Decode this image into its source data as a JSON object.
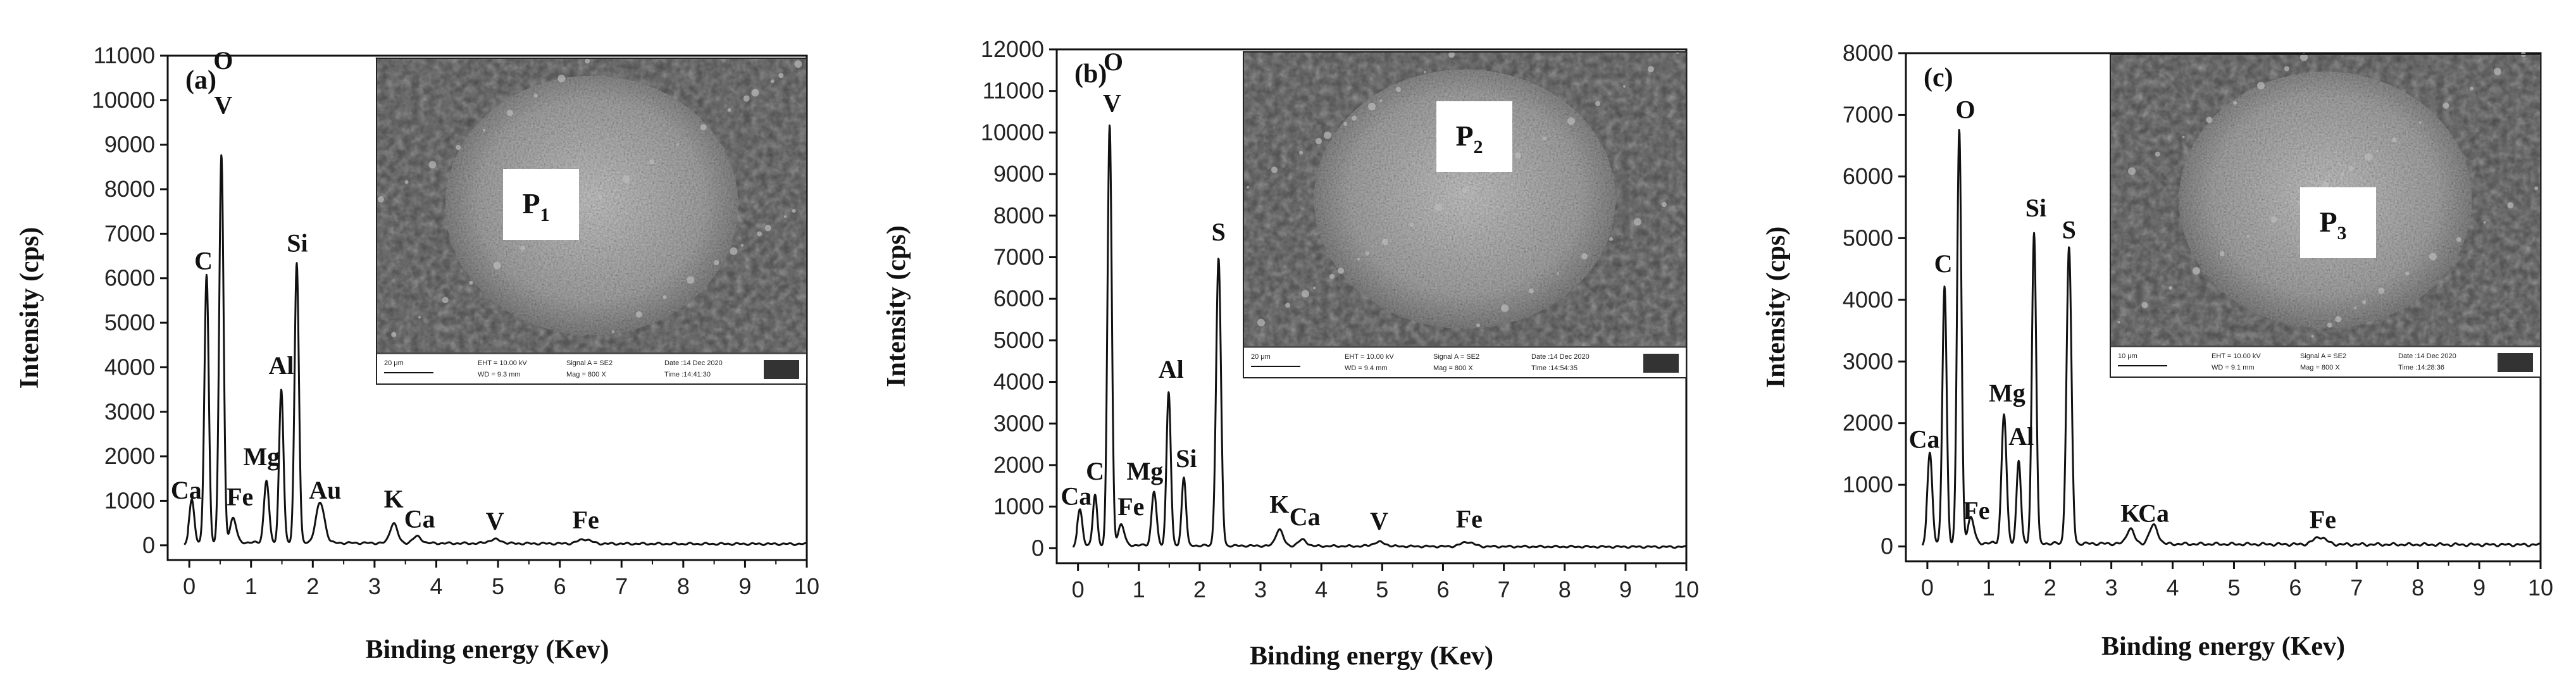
{
  "chart_data": [
    {
      "type": "line",
      "panel": "(a)",
      "xlabel": "Binding energy (Kev)",
      "ylabel": "Intensity (cps)",
      "xlim": [
        0,
        10
      ],
      "ylim": [
        0,
        11000
      ],
      "xticks": [
        0,
        1,
        2,
        3,
        4,
        5,
        6,
        7,
        8,
        9,
        10
      ],
      "yticks": [
        0,
        1000,
        2000,
        3000,
        4000,
        5000,
        6000,
        7000,
        8000,
        9000,
        10000,
        11000
      ],
      "baseline": 50,
      "peaks": [
        {
          "x": 0.04,
          "y": 950,
          "w": 0.04
        },
        {
          "x": 0.28,
          "y": 6000,
          "w": 0.035
        },
        {
          "x": 0.52,
          "y": 8700,
          "w": 0.035
        },
        {
          "x": 0.71,
          "y": 550,
          "w": 0.05
        },
        {
          "x": 1.25,
          "y": 1400,
          "w": 0.04
        },
        {
          "x": 1.49,
          "y": 3450,
          "w": 0.035
        },
        {
          "x": 1.74,
          "y": 6300,
          "w": 0.035
        },
        {
          "x": 2.12,
          "y": 900,
          "w": 0.07
        },
        {
          "x": 3.31,
          "y": 450,
          "w": 0.06
        },
        {
          "x": 3.69,
          "y": 150,
          "w": 0.07
        },
        {
          "x": 4.95,
          "y": 90,
          "w": 0.1
        },
        {
          "x": 6.4,
          "y": 100,
          "w": 0.1
        }
      ],
      "labels": [
        {
          "text": "Ca",
          "x": -0.05,
          "y": 1050
        },
        {
          "text": "C",
          "x": 0.23,
          "y": 6200
        },
        {
          "text": "O",
          "x": 0.55,
          "y": 10700
        },
        {
          "text": "V",
          "x": 0.55,
          "y": 9700
        },
        {
          "text": "Fe",
          "x": 0.82,
          "y": 900
        },
        {
          "text": "Mg",
          "x": 1.17,
          "y": 1800
        },
        {
          "text": "Al",
          "x": 1.49,
          "y": 3850
        },
        {
          "text": "Si",
          "x": 1.75,
          "y": 6600
        },
        {
          "text": "Au",
          "x": 2.2,
          "y": 1050
        },
        {
          "text": "K",
          "x": 3.31,
          "y": 850
        },
        {
          "text": "Ca",
          "x": 3.73,
          "y": 400
        },
        {
          "text": "V",
          "x": 4.95,
          "y": 350
        },
        {
          "text": "Fe",
          "x": 6.42,
          "y": 380
        }
      ],
      "inset": {
        "particle": "P",
        "subscript": "1",
        "scale_bar": "20 μm",
        "eht": "EHT = 10.00 kV",
        "wd": "WD = 9.3 mm",
        "signal": "Signal A = SE2",
        "mag": "Mag = 800 X",
        "date": "Date :14 Dec 2020",
        "time": "Time :14:41:30"
      }
    },
    {
      "type": "line",
      "panel": "(b)",
      "xlabel": "Binding energy (Kev)",
      "ylabel": "Intensity (cps)",
      "xlim": [
        0,
        10
      ],
      "ylim": [
        0,
        12000
      ],
      "xticks": [
        0,
        1,
        2,
        3,
        4,
        5,
        6,
        7,
        8,
        9,
        10
      ],
      "yticks": [
        0,
        1000,
        2000,
        3000,
        4000,
        5000,
        6000,
        7000,
        8000,
        9000,
        10000,
        11000,
        12000
      ],
      "baseline": 60,
      "peaks": [
        {
          "x": 0.03,
          "y": 850,
          "w": 0.04
        },
        {
          "x": 0.28,
          "y": 1200,
          "w": 0.035
        },
        {
          "x": 0.52,
          "y": 10100,
          "w": 0.035
        },
        {
          "x": 0.71,
          "y": 500,
          "w": 0.05
        },
        {
          "x": 1.25,
          "y": 1300,
          "w": 0.04
        },
        {
          "x": 1.49,
          "y": 3700,
          "w": 0.035
        },
        {
          "x": 1.74,
          "y": 1650,
          "w": 0.035
        },
        {
          "x": 2.31,
          "y": 6900,
          "w": 0.04
        },
        {
          "x": 3.31,
          "y": 400,
          "w": 0.06
        },
        {
          "x": 3.69,
          "y": 150,
          "w": 0.07
        },
        {
          "x": 4.95,
          "y": 100,
          "w": 0.1
        },
        {
          "x": 6.4,
          "y": 110,
          "w": 0.1
        }
      ],
      "labels": [
        {
          "text": "Ca",
          "x": -0.03,
          "y": 1050
        },
        {
          "text": "C",
          "x": 0.28,
          "y": 1650
        },
        {
          "text": "O",
          "x": 0.58,
          "y": 11500
        },
        {
          "text": "V",
          "x": 0.56,
          "y": 10500
        },
        {
          "text": "Fe",
          "x": 0.87,
          "y": 800
        },
        {
          "text": "Mg",
          "x": 1.1,
          "y": 1650
        },
        {
          "text": "Al",
          "x": 1.53,
          "y": 4100
        },
        {
          "text": "Si",
          "x": 1.78,
          "y": 1950
        },
        {
          "text": "S",
          "x": 2.31,
          "y": 7400
        },
        {
          "text": "K",
          "x": 3.31,
          "y": 850
        },
        {
          "text": "Ca",
          "x": 3.73,
          "y": 550
        },
        {
          "text": "V",
          "x": 4.95,
          "y": 450
        },
        {
          "text": "Fe",
          "x": 6.43,
          "y": 500
        }
      ],
      "inset": {
        "particle": "P",
        "subscript": "2",
        "scale_bar": "20 μm",
        "eht": "EHT = 10.00 kV",
        "wd": "WD = 9.4 mm",
        "signal": "Signal A = SE2",
        "mag": "Mag = 800 X",
        "date": "Date :14 Dec 2020",
        "time": "Time :14:54:35"
      }
    },
    {
      "type": "line",
      "panel": "(c)",
      "xlabel": "Binding energy (Kev)",
      "ylabel": "Intensity (cps)",
      "xlim": [
        0,
        10
      ],
      "ylim": [
        0,
        8000
      ],
      "xticks": [
        0,
        1,
        2,
        3,
        4,
        5,
        6,
        7,
        8,
        9,
        10
      ],
      "yticks": [
        0,
        1000,
        2000,
        3000,
        4000,
        5000,
        6000,
        7000,
        8000
      ],
      "baseline": 40,
      "peaks": [
        {
          "x": 0.04,
          "y": 1450,
          "w": 0.04
        },
        {
          "x": 0.28,
          "y": 4150,
          "w": 0.035
        },
        {
          "x": 0.52,
          "y": 6700,
          "w": 0.035
        },
        {
          "x": 0.71,
          "y": 420,
          "w": 0.05
        },
        {
          "x": 1.25,
          "y": 2100,
          "w": 0.04
        },
        {
          "x": 1.49,
          "y": 1350,
          "w": 0.035
        },
        {
          "x": 1.74,
          "y": 5050,
          "w": 0.035
        },
        {
          "x": 2.31,
          "y": 4800,
          "w": 0.04
        },
        {
          "x": 3.31,
          "y": 250,
          "w": 0.06
        },
        {
          "x": 3.69,
          "y": 300,
          "w": 0.07
        },
        {
          "x": 6.4,
          "y": 120,
          "w": 0.1
        }
      ],
      "labels": [
        {
          "text": "Ca",
          "x": -0.05,
          "y": 1600
        },
        {
          "text": "C",
          "x": 0.26,
          "y": 4450
        },
        {
          "text": "O",
          "x": 0.62,
          "y": 6950
        },
        {
          "text": "Fe",
          "x": 0.8,
          "y": 450
        },
        {
          "text": "Mg",
          "x": 1.3,
          "y": 2350
        },
        {
          "text": "Al",
          "x": 1.53,
          "y": 1650
        },
        {
          "text": "Si",
          "x": 1.77,
          "y": 5350
        },
        {
          "text": "S",
          "x": 2.31,
          "y": 5000
        },
        {
          "text": "K",
          "x": 3.31,
          "y": 400
        },
        {
          "text": "Ca",
          "x": 3.69,
          "y": 400
        },
        {
          "text": "Fe",
          "x": 6.45,
          "y": 300
        }
      ],
      "inset": {
        "particle": "P",
        "subscript": "3",
        "scale_bar": "10 μm",
        "eht": "EHT = 10.00 kV",
        "wd": "WD = 9.1 mm",
        "signal": "Signal A = SE2",
        "mag": "Mag = 800 X",
        "date": "Date :14 Dec 2020",
        "time": "Time :14:28:36"
      }
    }
  ]
}
